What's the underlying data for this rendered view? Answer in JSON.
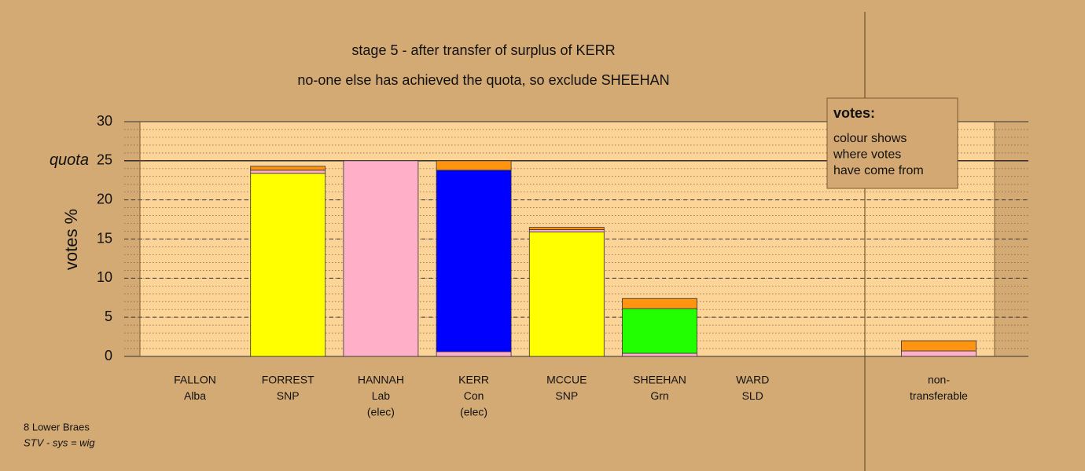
{
  "chart_data": {
    "type": "bar",
    "stacked": true,
    "title": "stage 5 - after transfer of surplus of KERR",
    "subtitle": "no-one else has achieved the quota, so exclude SHEEHAN",
    "y_label": "votes %",
    "categories": [
      [
        "FALLON",
        "Alba"
      ],
      [
        "FORREST",
        "SNP"
      ],
      [
        "HANNAH",
        "Lab",
        "(elec)"
      ],
      [
        "KERR",
        "Con",
        "(elec)"
      ],
      [
        "MCCUE",
        "SNP"
      ],
      [
        "SHEEHAN",
        "Grn"
      ],
      [
        "WARD",
        "SLD"
      ],
      [
        "non-",
        "transferable"
      ]
    ],
    "series": [
      {
        "color": "#ffff00",
        "values": [
          0,
          23.4,
          0,
          0,
          15.9,
          0,
          0,
          0
        ]
      },
      {
        "color": "#ffb0c8",
        "values": [
          0,
          0.4,
          25,
          0.6,
          0.3,
          0.4,
          0,
          0.7
        ]
      },
      {
        "color": "#0000ff",
        "values": [
          0,
          0,
          0,
          23.2,
          0,
          0,
          0,
          0
        ]
      },
      {
        "color": "#22ff00",
        "values": [
          0,
          0,
          0,
          0,
          0,
          5.7,
          0,
          0
        ]
      },
      {
        "color": "#ff9411",
        "values": [
          0,
          0.5,
          0,
          1.2,
          0.3,
          1.3,
          0,
          1.3
        ]
      }
    ],
    "ylim": [
      0,
      30
    ],
    "yticks": [
      0,
      5,
      10,
      15,
      20,
      25,
      30
    ],
    "minor_tick_step": 1,
    "quota": {
      "value": 25,
      "label": "quota"
    },
    "legend_box": {
      "title": "votes:",
      "lines": [
        "colour shows",
        "where votes",
        "have come from"
      ]
    },
    "footnote": [
      "8 Lower Braes",
      "STV - sys = wig"
    ]
  }
}
